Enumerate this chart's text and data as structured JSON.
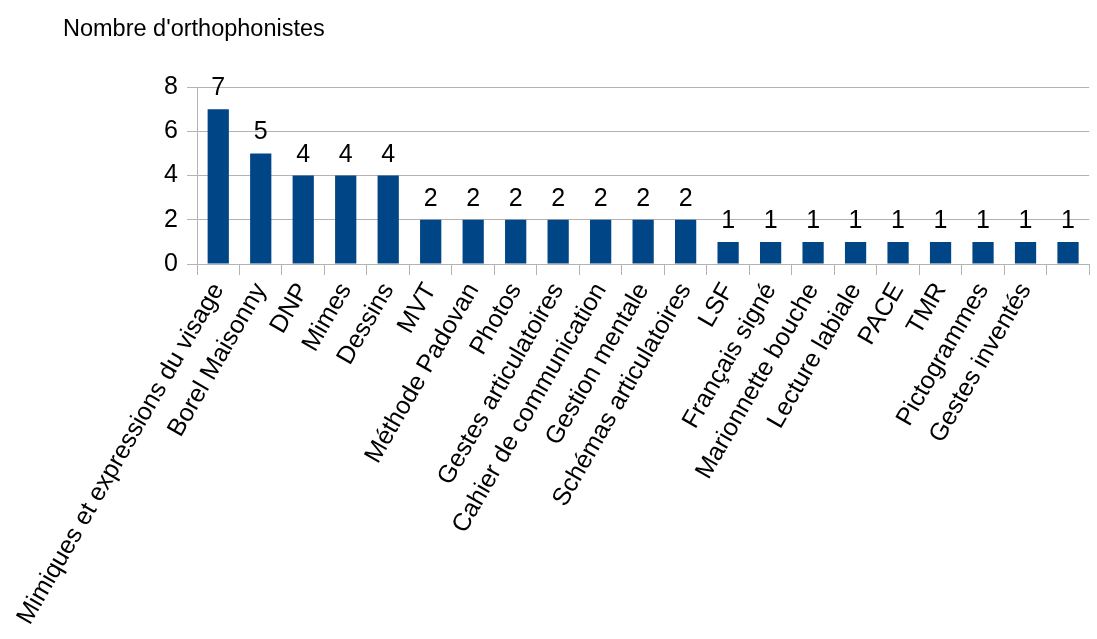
{
  "chart_data": {
    "type": "bar",
    "ylabel": "Nombre d'orthophonistes",
    "categories": [
      "Mimiques et expressions du visage",
      "Borel Maisonny",
      "DNP",
      "Mimes",
      "Dessins",
      "MVT",
      "Méthode Padovan",
      "Photos",
      "Gestes articulatoires",
      "Cahier de communication",
      "Gestion mentale",
      "Schémas articulatoires",
      "LSF",
      "Français signé",
      "Marionnette bouche",
      "Lecture labiale",
      "PACE",
      "TMR",
      "Pictogrammes",
      "Gestes inventés",
      null
    ],
    "values": [
      7,
      5,
      4,
      4,
      4,
      2,
      2,
      2,
      2,
      2,
      2,
      2,
      1,
      1,
      1,
      1,
      1,
      1,
      1,
      1,
      1
    ],
    "color": "#004586",
    "ylim": [
      0,
      8
    ],
    "yticks": [
      0,
      2,
      4,
      6,
      8
    ],
    "grid": "y",
    "data_labels": true
  }
}
